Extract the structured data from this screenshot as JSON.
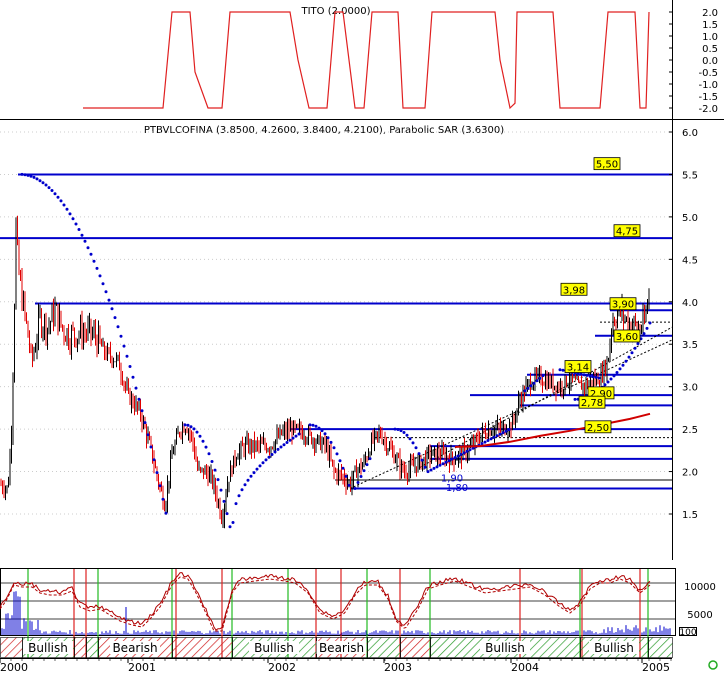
{
  "colors": {
    "tito_line": "#e02020",
    "price_up": "#000000",
    "price_down": "#e00000",
    "sar": "#0000cc",
    "levels": "#0000cc",
    "ma": "#d00000",
    "volume": "#0000cc",
    "stoch": "#b00000",
    "bull_hatch": "#2a9a2a",
    "bear_hatch": "#d02020",
    "grid": "#000000",
    "label_bg": "#ffff00",
    "green_marker": "#22bb22",
    "red_marker": "#dd2222"
  },
  "tito_panel": {
    "title": "TITO (2.0000)",
    "ticks": [
      "2.0",
      "1.5",
      "1.0",
      "0.5",
      "0.0",
      "-0.5",
      "-1.0",
      "-1.5",
      "-2.0"
    ]
  },
  "price_panel": {
    "title": "PTBVLCOFINA (3.8500, 4.2600, 3.8400, 4.2100), Parabolic SAR (3.6300)",
    "ticks": [
      "6.0",
      "5.5",
      "5.0",
      "4.5",
      "4.0",
      "3.5",
      "3.0",
      "2.5",
      "2.0",
      "1.5"
    ]
  },
  "level_labels": [
    "5,50",
    "4,75",
    "3,98",
    "3,90",
    "3,60",
    "3,14",
    "2,90",
    "2,78",
    "2,50",
    "1,90",
    "1,80"
  ],
  "volume_panel": {
    "ticks": [
      "10000",
      "5000"
    ],
    "unit_label": "100"
  },
  "regime_labels": [
    "Bullish",
    "Bearish",
    "Bullish",
    "Bearish",
    "Bullish",
    "Bullish"
  ],
  "x_axis": [
    "2000",
    "2001",
    "2002",
    "2003",
    "2004",
    "2005"
  ],
  "corner_icon": "settings-circle-icon",
  "chart_data": [
    {
      "type": "line",
      "title": "TITO (2.0000)",
      "x": [
        "2000-01",
        "2000-07",
        "2001-01",
        "2001-07",
        "2002-01",
        "2002-07",
        "2003-01",
        "2003-07",
        "2004-01",
        "2004-07",
        "2005-01"
      ],
      "values": [
        -2,
        2,
        2,
        -2,
        2,
        2,
        -2,
        2,
        2,
        2,
        2
      ],
      "ylim": [
        -2.0,
        2.0
      ]
    },
    {
      "type": "line",
      "title": "PTBVLCOFINA (3.8500, 4.2600, 3.8400, 4.2100), Parabolic SAR (3.6300)",
      "x": [
        "2000-01",
        "2000-02",
        "2000-03",
        "2000-06",
        "2000-09",
        "2000-12",
        "2001-03",
        "2001-06",
        "2001-09",
        "2001-12",
        "2002-03",
        "2002-06",
        "2002-09",
        "2002-12",
        "2003-03",
        "2003-06",
        "2003-09",
        "2003-12",
        "2004-03",
        "2004-06",
        "2004-09",
        "2004-12"
      ],
      "series": [
        {
          "values": [
            1.85,
            4.9,
            3.3,
            3.9,
            3.5,
            2.5,
            1.6,
            2.5,
            1.5,
            2.3,
            2.3,
            2.5,
            2.1,
            2.45,
            2.0,
            2.2,
            2.5,
            2.8,
            3.1,
            3.05,
            3.1,
            4.21
          ]
        }
      ],
      "ylim": [
        1.3,
        6.2
      ],
      "horizontal_levels": [
        5.5,
        4.75,
        3.98,
        3.9,
        3.6,
        3.14,
        2.9,
        2.78,
        2.5,
        2.3,
        2.15,
        1.9,
        1.8
      ]
    },
    {
      "type": "line",
      "title": "",
      "x": [
        "2000",
        "2001",
        "2002",
        "2003",
        "2004",
        "2005"
      ],
      "ylim": [
        0,
        12000
      ],
      "legend_position": "none"
    }
  ]
}
